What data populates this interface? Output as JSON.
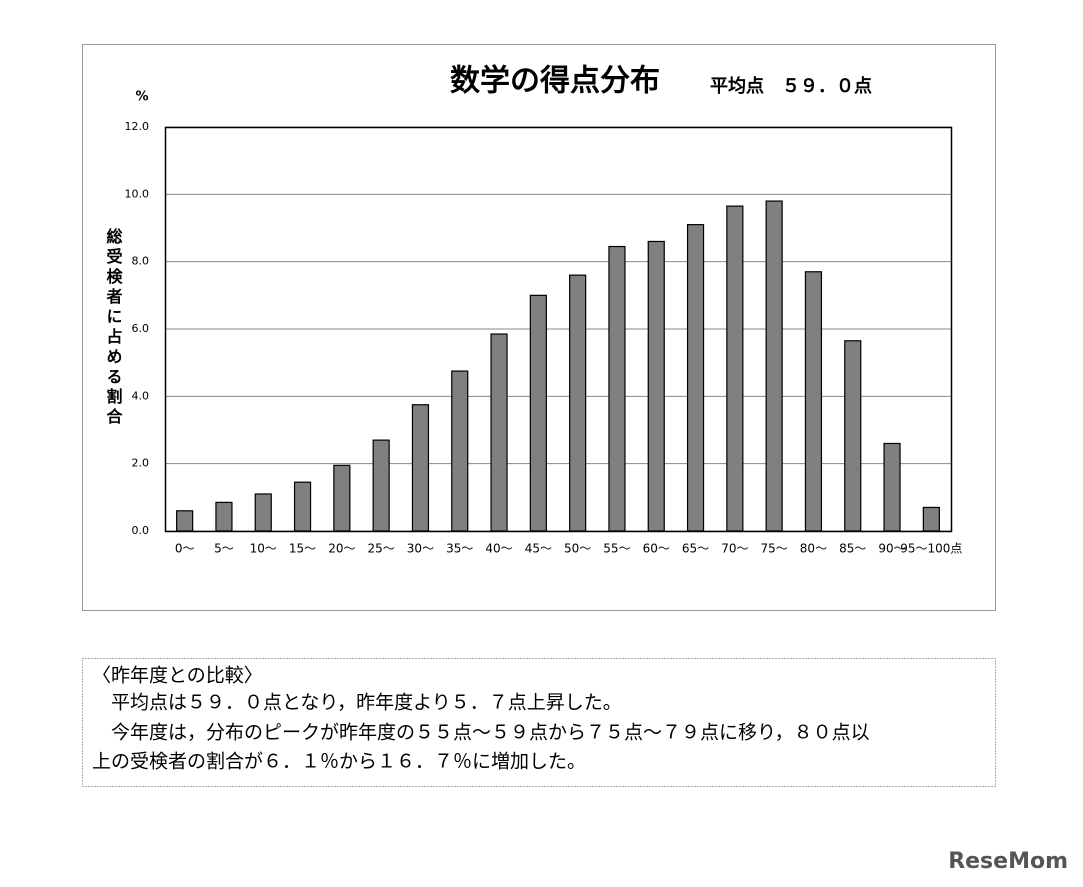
{
  "chart_data": {
    "type": "bar",
    "title": "数学の得点分布",
    "subtitle": "平均点　５９．０点",
    "y_unit": "%",
    "ylabel": "総受検者に占める割合",
    "categories": [
      "0～",
      "5～",
      "10～",
      "15～",
      "20～",
      "25～",
      "30～",
      "35～",
      "40～",
      "45～",
      "50～",
      "55～",
      "60～",
      "65～",
      "70～",
      "75～",
      "80～",
      "85～",
      "90～",
      "95～100点"
    ],
    "values": [
      0.6,
      0.85,
      1.1,
      1.45,
      1.95,
      2.7,
      3.75,
      4.75,
      5.85,
      7.0,
      7.6,
      8.45,
      8.6,
      9.1,
      9.65,
      9.8,
      7.7,
      5.65,
      2.6,
      0.7
    ],
    "color": "#808080",
    "ylim": [
      0,
      12
    ],
    "yticks": [
      {
        "value": 0,
        "label": "0.0"
      },
      {
        "value": 2,
        "label": "2.0"
      },
      {
        "value": 4,
        "label": "4.0"
      },
      {
        "value": 6,
        "label": "6.0"
      },
      {
        "value": 8,
        "label": "8.0"
      },
      {
        "value": 10,
        "label": "10.0"
      },
      {
        "value": 12,
        "label": "12.0"
      }
    ],
    "grid": true
  },
  "comparison": {
    "lines": [
      "〈昨年度との比較〉",
      "　平均点は５９．０点となり，昨年度より５．７点上昇した。",
      "　今年度は，分布のピークが昨年度の５５点～５９点から７５点～７９点に移り，８０点以",
      "上の受検者の割合が６．１％から１６．７％に増加した。"
    ]
  },
  "watermark": "ReseMom"
}
